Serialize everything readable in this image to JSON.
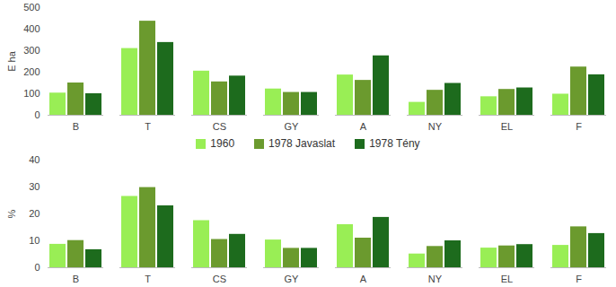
{
  "chart_data": [
    {
      "type": "bar",
      "categories": [
        "B",
        "T",
        "CS",
        "GY",
        "A",
        "NY",
        "EL",
        "F"
      ],
      "series": [
        {
          "name": "1960",
          "color": "#99ee55",
          "values": [
            103,
            310,
            205,
            122,
            187,
            60,
            86,
            98
          ]
        },
        {
          "name": "1978 Javaslat",
          "color": "#6b9a2e",
          "values": [
            150,
            437,
            155,
            106,
            162,
            116,
            120,
            224
          ]
        },
        {
          "name": "1978 Tény",
          "color": "#1d6b1d",
          "values": [
            100,
            338,
            182,
            106,
            276,
            148,
            127,
            188
          ]
        }
      ],
      "y_label": "E ha",
      "ylim": [
        0,
        500
      ],
      "yticks": [
        0,
        100,
        200,
        300,
        400,
        500
      ],
      "grid": false,
      "legend": "bottom"
    },
    {
      "type": "bar",
      "categories": [
        "B",
        "T",
        "CS",
        "GY",
        "A",
        "NY",
        "EL",
        "F"
      ],
      "series": [
        {
          "name": "1960",
          "color": "#99ee55",
          "values": [
            8.7,
            26.5,
            17.5,
            10.3,
            16,
            5.1,
            7.3,
            8.3
          ]
        },
        {
          "name": "1978 Javaslat",
          "color": "#6b9a2e",
          "values": [
            10.1,
            29.8,
            10.5,
            7.2,
            11,
            7.9,
            8.1,
            15.2
          ]
        },
        {
          "name": "1978 Tény",
          "color": "#1d6b1d",
          "values": [
            6.7,
            23,
            12.4,
            7.2,
            18.7,
            10,
            8.6,
            12.7
          ]
        }
      ],
      "y_label": "%",
      "ylim": [
        0,
        40
      ],
      "yticks": [
        0,
        10,
        20,
        30,
        40
      ],
      "grid": false
    }
  ]
}
